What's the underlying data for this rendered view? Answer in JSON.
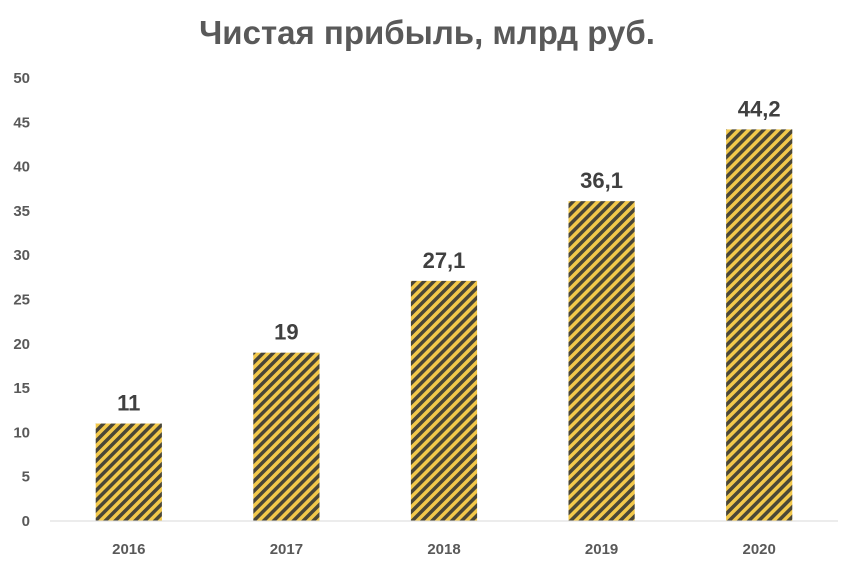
{
  "chart_data": {
    "type": "bar",
    "title": "Чистая прибыль, млрд руб.",
    "categories": [
      "2016",
      "2017",
      "2018",
      "2019",
      "2020"
    ],
    "values": [
      11,
      19,
      27.1,
      36.1,
      44.2
    ],
    "value_labels": [
      "11",
      "19",
      "27,1",
      "36,1",
      "44,2"
    ],
    "xlabel": "",
    "ylabel": "",
    "ylim": [
      0,
      50
    ],
    "yticks": [
      "0",
      "5",
      "10",
      "15",
      "20",
      "25",
      "30",
      "35",
      "40",
      "45",
      "50"
    ],
    "grid": false,
    "legend": "none",
    "bar_fill": "diagonal stripes",
    "colors": {
      "stripe_dark": "#4a4636",
      "stripe_light": "#f2c84b",
      "axis": "#d9d9d9",
      "text": "#595959",
      "label": "#404040"
    }
  }
}
